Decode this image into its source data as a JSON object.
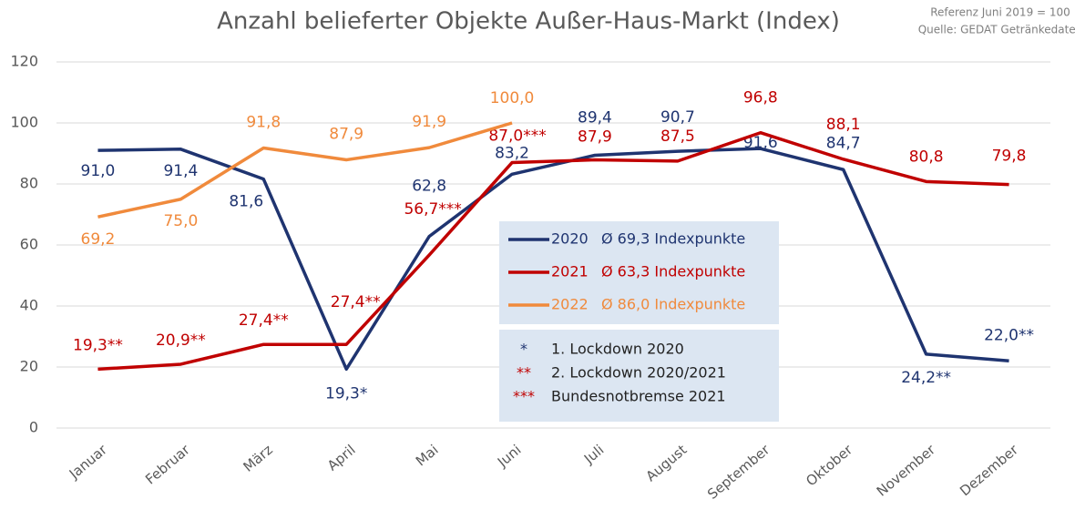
{
  "chart_data": {
    "type": "line",
    "title": "Anzahl belieferter Objekte Außer-Haus-Markt (Index)",
    "subtitle": "Referenz Juni 2019 = 100",
    "source": "Quelle: GEDAT Getränkedaten",
    "categories": [
      "Januar",
      "Februar",
      "März",
      "April",
      "Mai",
      "Juni",
      "Juli",
      "August",
      "September",
      "Oktober",
      "November",
      "Dezember"
    ],
    "ylim": [
      0,
      120
    ],
    "yticks": [
      0,
      20,
      40,
      60,
      80,
      100,
      120
    ],
    "grid": true,
    "series": [
      {
        "name": "2020",
        "legend_note": "Ø 69,3 Indexpunkte",
        "color": "#1f3470",
        "values": [
          91.0,
          91.4,
          81.6,
          19.3,
          62.8,
          83.2,
          89.4,
          90.7,
          91.6,
          84.7,
          24.2,
          22.0
        ],
        "value_labels": [
          "91,0",
          "91,4",
          "81,6",
          "19,3*",
          "62,8",
          "83,2",
          "89,4",
          "90,7",
          "91,6",
          "84,7",
          "24,2**",
          "22,0**"
        ]
      },
      {
        "name": "2021",
        "legend_note": "Ø 63,3 Indexpunkte",
        "color": "#c00000",
        "values": [
          19.3,
          20.9,
          27.4,
          27.4,
          56.7,
          87.0,
          87.9,
          87.5,
          96.8,
          88.1,
          80.8,
          79.8
        ],
        "value_labels": [
          "19,3**",
          "20,9**",
          "27,4**",
          "27,4**",
          "56,7***",
          "87,0***",
          "87,9",
          "87,5",
          "96,8",
          "88,1",
          "80,8",
          "79,8"
        ]
      },
      {
        "name": "2022",
        "legend_note": "Ø 86,0 Indexpunkte",
        "color": "#f08a3c",
        "values": [
          69.2,
          75.0,
          91.8,
          87.9,
          91.9,
          100.0,
          null,
          null,
          null,
          null,
          null,
          null
        ],
        "value_labels": [
          "69,2",
          "75,0",
          "91,8",
          "87,9",
          "91,9",
          "100,0",
          null,
          null,
          null,
          null,
          null,
          null
        ]
      }
    ],
    "footnotes": [
      {
        "symbol": "*",
        "text": "1. Lockdown 2020"
      },
      {
        "symbol": "**",
        "text": "2. Lockdown 2020/2021"
      },
      {
        "symbol": "***",
        "text": "Bundesnotbremse 2021"
      }
    ]
  }
}
